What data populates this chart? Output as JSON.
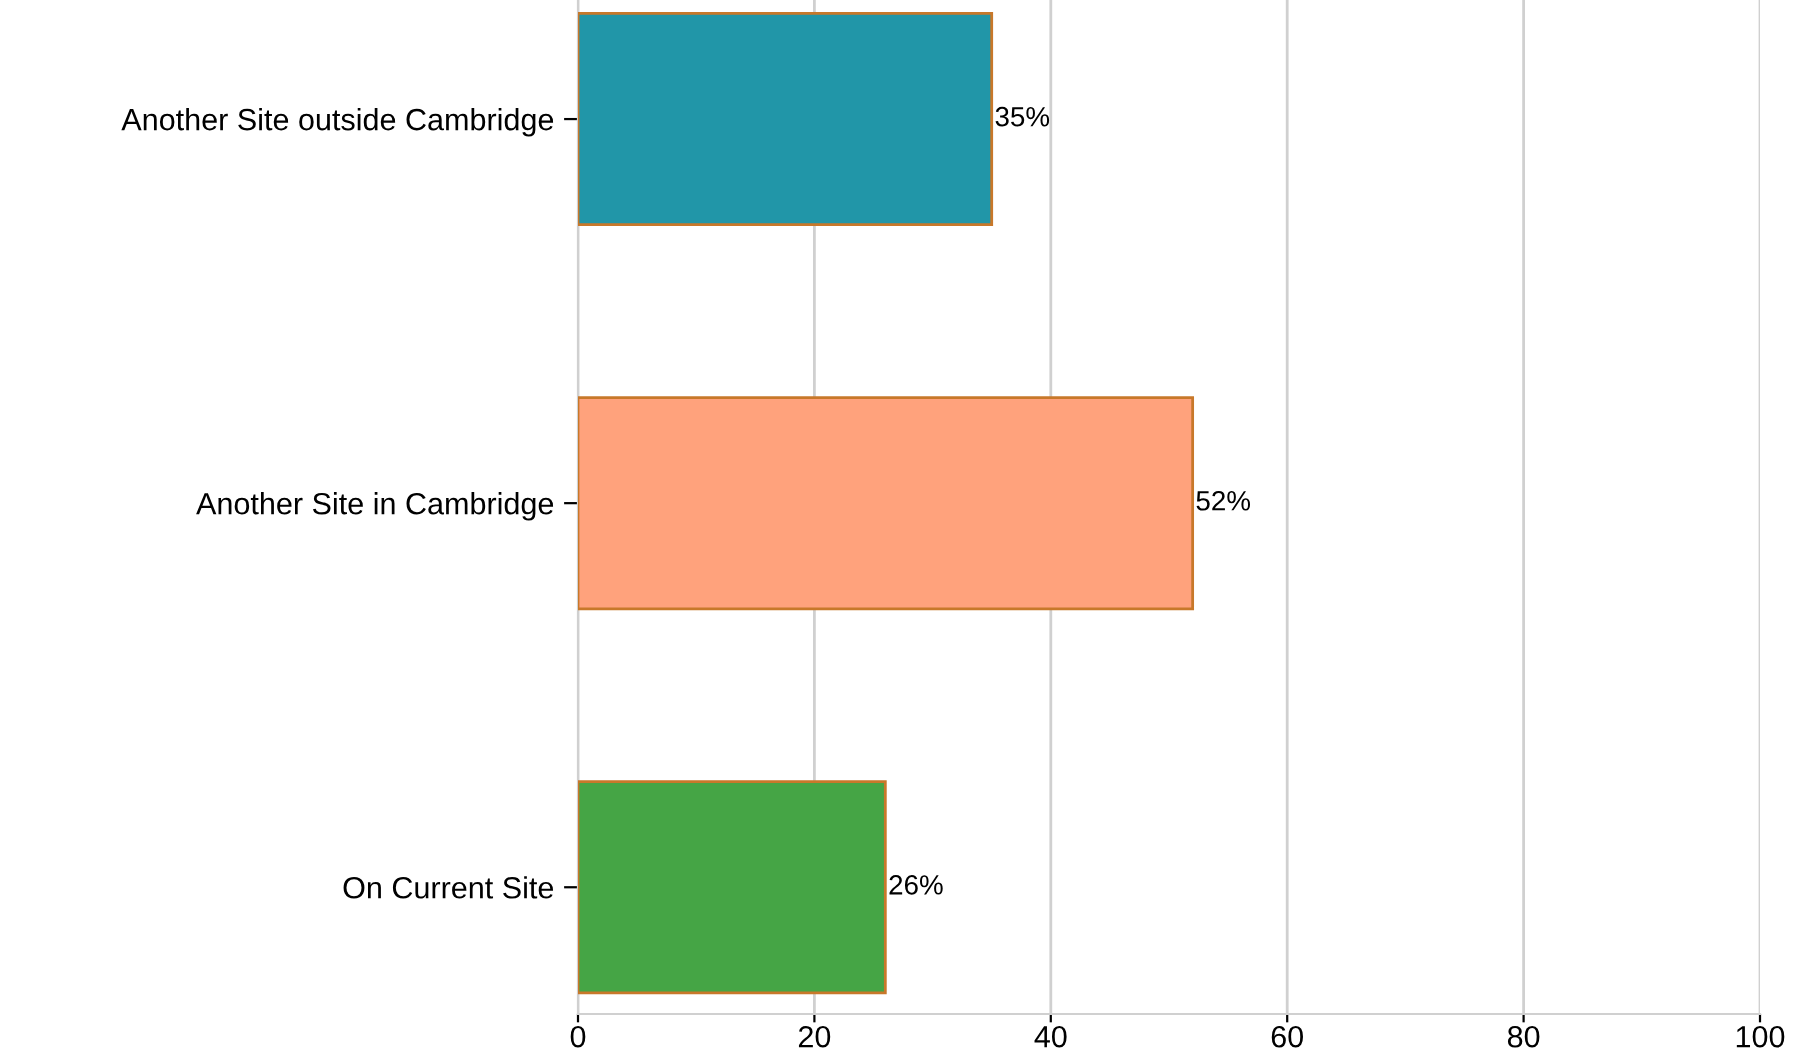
{
  "chart_data": {
    "type": "bar",
    "orientation": "horizontal",
    "categories": [
      "Another Site outside Cambridge",
      "Another Site in Cambridge",
      "On Current Site"
    ],
    "values": [
      35,
      52,
      26
    ],
    "colors": [
      "#2196a8",
      "#ffa27c",
      "#45a545"
    ],
    "value_labels": [
      "35%",
      "52%",
      "26%"
    ],
    "xlim": [
      0,
      100
    ],
    "xticks": [
      0,
      20,
      40,
      60,
      80,
      100
    ],
    "grid": "x",
    "legend": false
  }
}
